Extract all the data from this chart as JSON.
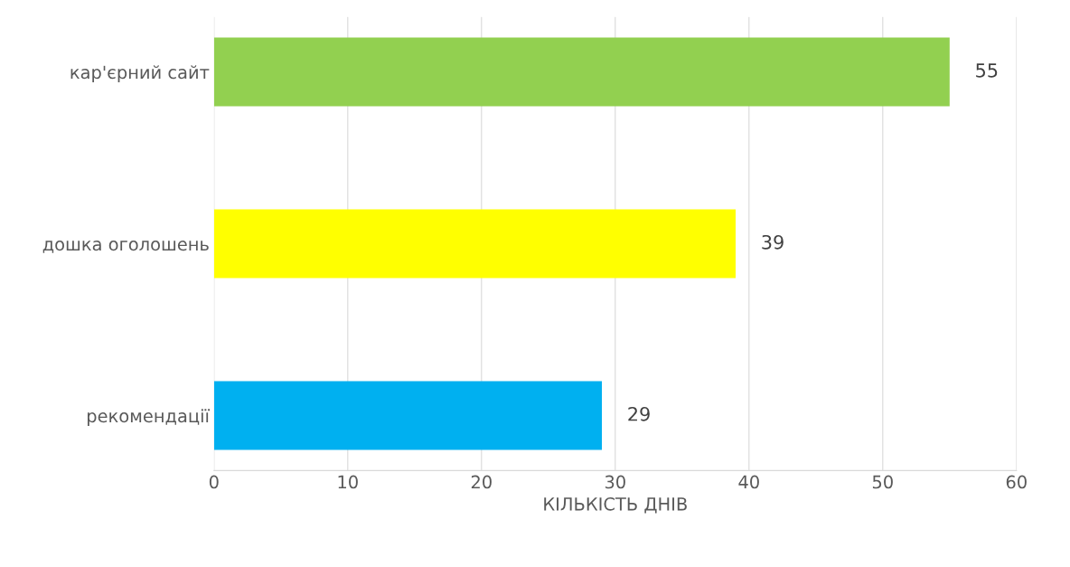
{
  "chart_data": {
    "type": "bar",
    "orientation": "horizontal",
    "xlabel": "КІЛЬКІСТЬ ДНІВ",
    "categories": [
      "кар'єрний сайт",
      "дошка оголошень",
      "рекомендації"
    ],
    "values": [
      55,
      39,
      29
    ],
    "colors": [
      "#92d050",
      "#ffff00",
      "#00b0f0"
    ],
    "xlim": [
      0,
      60
    ],
    "xticks": [
      0,
      10,
      20,
      30,
      40,
      50,
      60
    ],
    "grid": "x",
    "data_labels": true
  }
}
